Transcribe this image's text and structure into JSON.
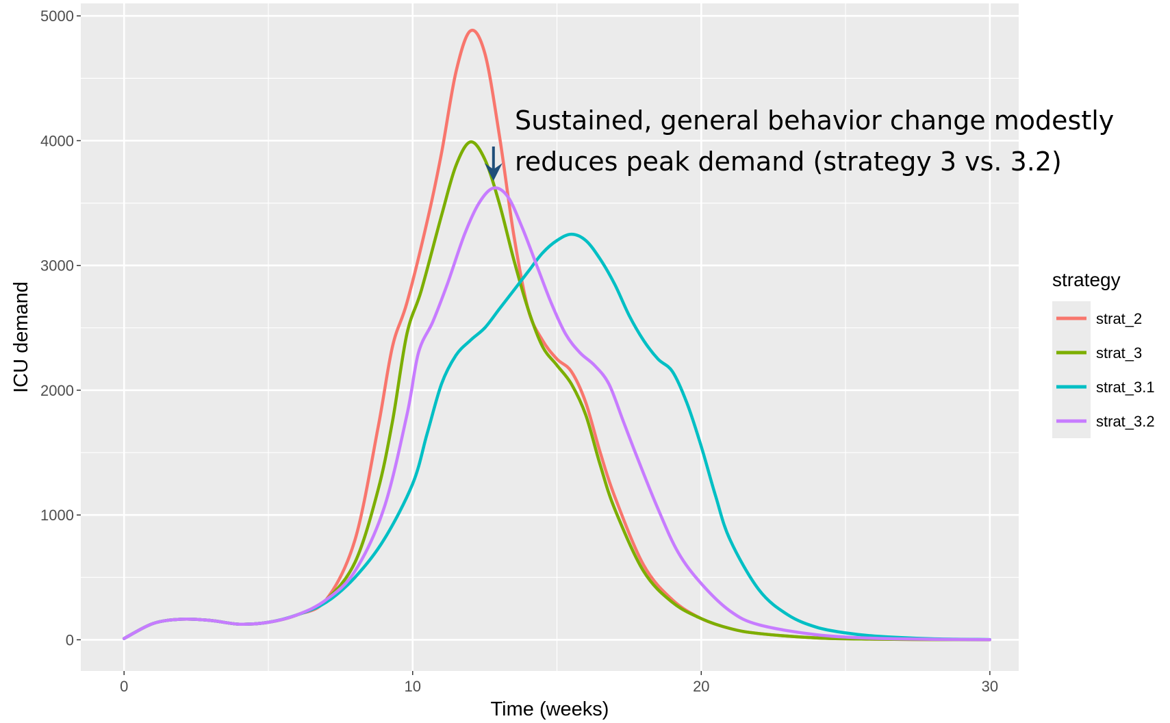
{
  "chart_data": {
    "type": "line",
    "title": "",
    "xlabel": "Time (weeks)",
    "ylabel": "ICU demand",
    "xlim": [
      -1.5,
      31
    ],
    "ylim": [
      -250,
      5100
    ],
    "x_ticks": [
      0,
      10,
      20,
      30
    ],
    "y_ticks": [
      0,
      1000,
      2000,
      3000,
      4000,
      5000
    ],
    "grid": true,
    "legend": {
      "title": "strategy",
      "placement": "right"
    },
    "annotation": {
      "lines": [
        "Sustained, general behavior change modestly",
        "reduces peak demand (strategy 3 vs. 3.2)"
      ],
      "arrow_target": {
        "x": 12.8,
        "y": 3650
      },
      "arrow_color": "#1f4e79"
    },
    "series": [
      {
        "name": "strat_2",
        "color": "#F8766D",
        "points": [
          [
            0,
            10
          ],
          [
            1,
            130
          ],
          [
            2,
            165
          ],
          [
            3,
            155
          ],
          [
            4,
            125
          ],
          [
            5,
            140
          ],
          [
            6,
            200
          ],
          [
            7,
            320
          ],
          [
            8,
            800
          ],
          [
            8.8,
            1700
          ],
          [
            9.3,
            2350
          ],
          [
            9.8,
            2700
          ],
          [
            10.5,
            3350
          ],
          [
            11,
            3900
          ],
          [
            11.5,
            4550
          ],
          [
            12,
            4880
          ],
          [
            12.5,
            4700
          ],
          [
            13,
            4050
          ],
          [
            13.5,
            3250
          ],
          [
            14,
            2650
          ],
          [
            14.5,
            2400
          ],
          [
            15,
            2250
          ],
          [
            15.5,
            2150
          ],
          [
            16,
            1900
          ],
          [
            16.5,
            1500
          ],
          [
            17,
            1150
          ],
          [
            18,
            600
          ],
          [
            19,
            320
          ],
          [
            20,
            170
          ],
          [
            21,
            90
          ],
          [
            22,
            50
          ],
          [
            24,
            15
          ],
          [
            26,
            5
          ],
          [
            28,
            2
          ],
          [
            30,
            0
          ]
        ]
      },
      {
        "name": "strat_3",
        "color": "#7CAE00",
        "points": [
          [
            0,
            10
          ],
          [
            1,
            130
          ],
          [
            2,
            165
          ],
          [
            3,
            155
          ],
          [
            4,
            125
          ],
          [
            5,
            140
          ],
          [
            6,
            200
          ],
          [
            7,
            320
          ],
          [
            8,
            620
          ],
          [
            8.8,
            1200
          ],
          [
            9.3,
            1750
          ],
          [
            9.8,
            2450
          ],
          [
            10.3,
            2800
          ],
          [
            11,
            3400
          ],
          [
            11.5,
            3800
          ],
          [
            12,
            3990
          ],
          [
            12.5,
            3850
          ],
          [
            13,
            3500
          ],
          [
            13.5,
            3050
          ],
          [
            14,
            2650
          ],
          [
            14.5,
            2350
          ],
          [
            15,
            2200
          ],
          [
            15.5,
            2050
          ],
          [
            16,
            1800
          ],
          [
            16.5,
            1400
          ],
          [
            17,
            1050
          ],
          [
            18,
            550
          ],
          [
            19,
            300
          ],
          [
            20,
            170
          ],
          [
            21,
            90
          ],
          [
            22,
            50
          ],
          [
            24,
            15
          ],
          [
            26,
            5
          ],
          [
            28,
            2
          ],
          [
            30,
            0
          ]
        ]
      },
      {
        "name": "strat_3.1",
        "color": "#00BFC4",
        "points": [
          [
            0,
            10
          ],
          [
            1,
            130
          ],
          [
            2,
            165
          ],
          [
            3,
            155
          ],
          [
            4,
            125
          ],
          [
            5,
            140
          ],
          [
            6,
            200
          ],
          [
            7,
            300
          ],
          [
            8,
            500
          ],
          [
            9,
            800
          ],
          [
            10,
            1250
          ],
          [
            10.5,
            1650
          ],
          [
            11,
            2050
          ],
          [
            11.5,
            2280
          ],
          [
            12,
            2400
          ],
          [
            12.5,
            2500
          ],
          [
            13,
            2650
          ],
          [
            13.5,
            2800
          ],
          [
            14,
            2950
          ],
          [
            14.5,
            3100
          ],
          [
            15,
            3200
          ],
          [
            15.5,
            3250
          ],
          [
            16,
            3200
          ],
          [
            16.5,
            3050
          ],
          [
            17,
            2850
          ],
          [
            17.5,
            2600
          ],
          [
            18,
            2400
          ],
          [
            18.5,
            2250
          ],
          [
            19,
            2150
          ],
          [
            19.5,
            1900
          ],
          [
            20,
            1550
          ],
          [
            20.5,
            1150
          ],
          [
            21,
            800
          ],
          [
            22,
            400
          ],
          [
            23,
            200
          ],
          [
            24,
            100
          ],
          [
            25,
            55
          ],
          [
            26,
            30
          ],
          [
            28,
            8
          ],
          [
            30,
            2
          ]
        ]
      },
      {
        "name": "strat_3.2",
        "color": "#C77CFF",
        "points": [
          [
            0,
            10
          ],
          [
            1,
            130
          ],
          [
            2,
            165
          ],
          [
            3,
            155
          ],
          [
            4,
            125
          ],
          [
            5,
            140
          ],
          [
            6,
            200
          ],
          [
            7,
            320
          ],
          [
            8,
            550
          ],
          [
            9,
            1050
          ],
          [
            9.8,
            1800
          ],
          [
            10.2,
            2300
          ],
          [
            10.7,
            2550
          ],
          [
            11.2,
            2850
          ],
          [
            11.8,
            3250
          ],
          [
            12.3,
            3500
          ],
          [
            12.8,
            3620
          ],
          [
            13.3,
            3550
          ],
          [
            13.8,
            3300
          ],
          [
            14.3,
            3000
          ],
          [
            14.8,
            2700
          ],
          [
            15.3,
            2450
          ],
          [
            15.8,
            2300
          ],
          [
            16.3,
            2200
          ],
          [
            16.8,
            2050
          ],
          [
            17.3,
            1750
          ],
          [
            17.8,
            1450
          ],
          [
            18.5,
            1050
          ],
          [
            19.2,
            700
          ],
          [
            20,
            450
          ],
          [
            21,
            230
          ],
          [
            22,
            120
          ],
          [
            24,
            40
          ],
          [
            26,
            12
          ],
          [
            28,
            4
          ],
          [
            30,
            1
          ]
        ]
      }
    ]
  }
}
